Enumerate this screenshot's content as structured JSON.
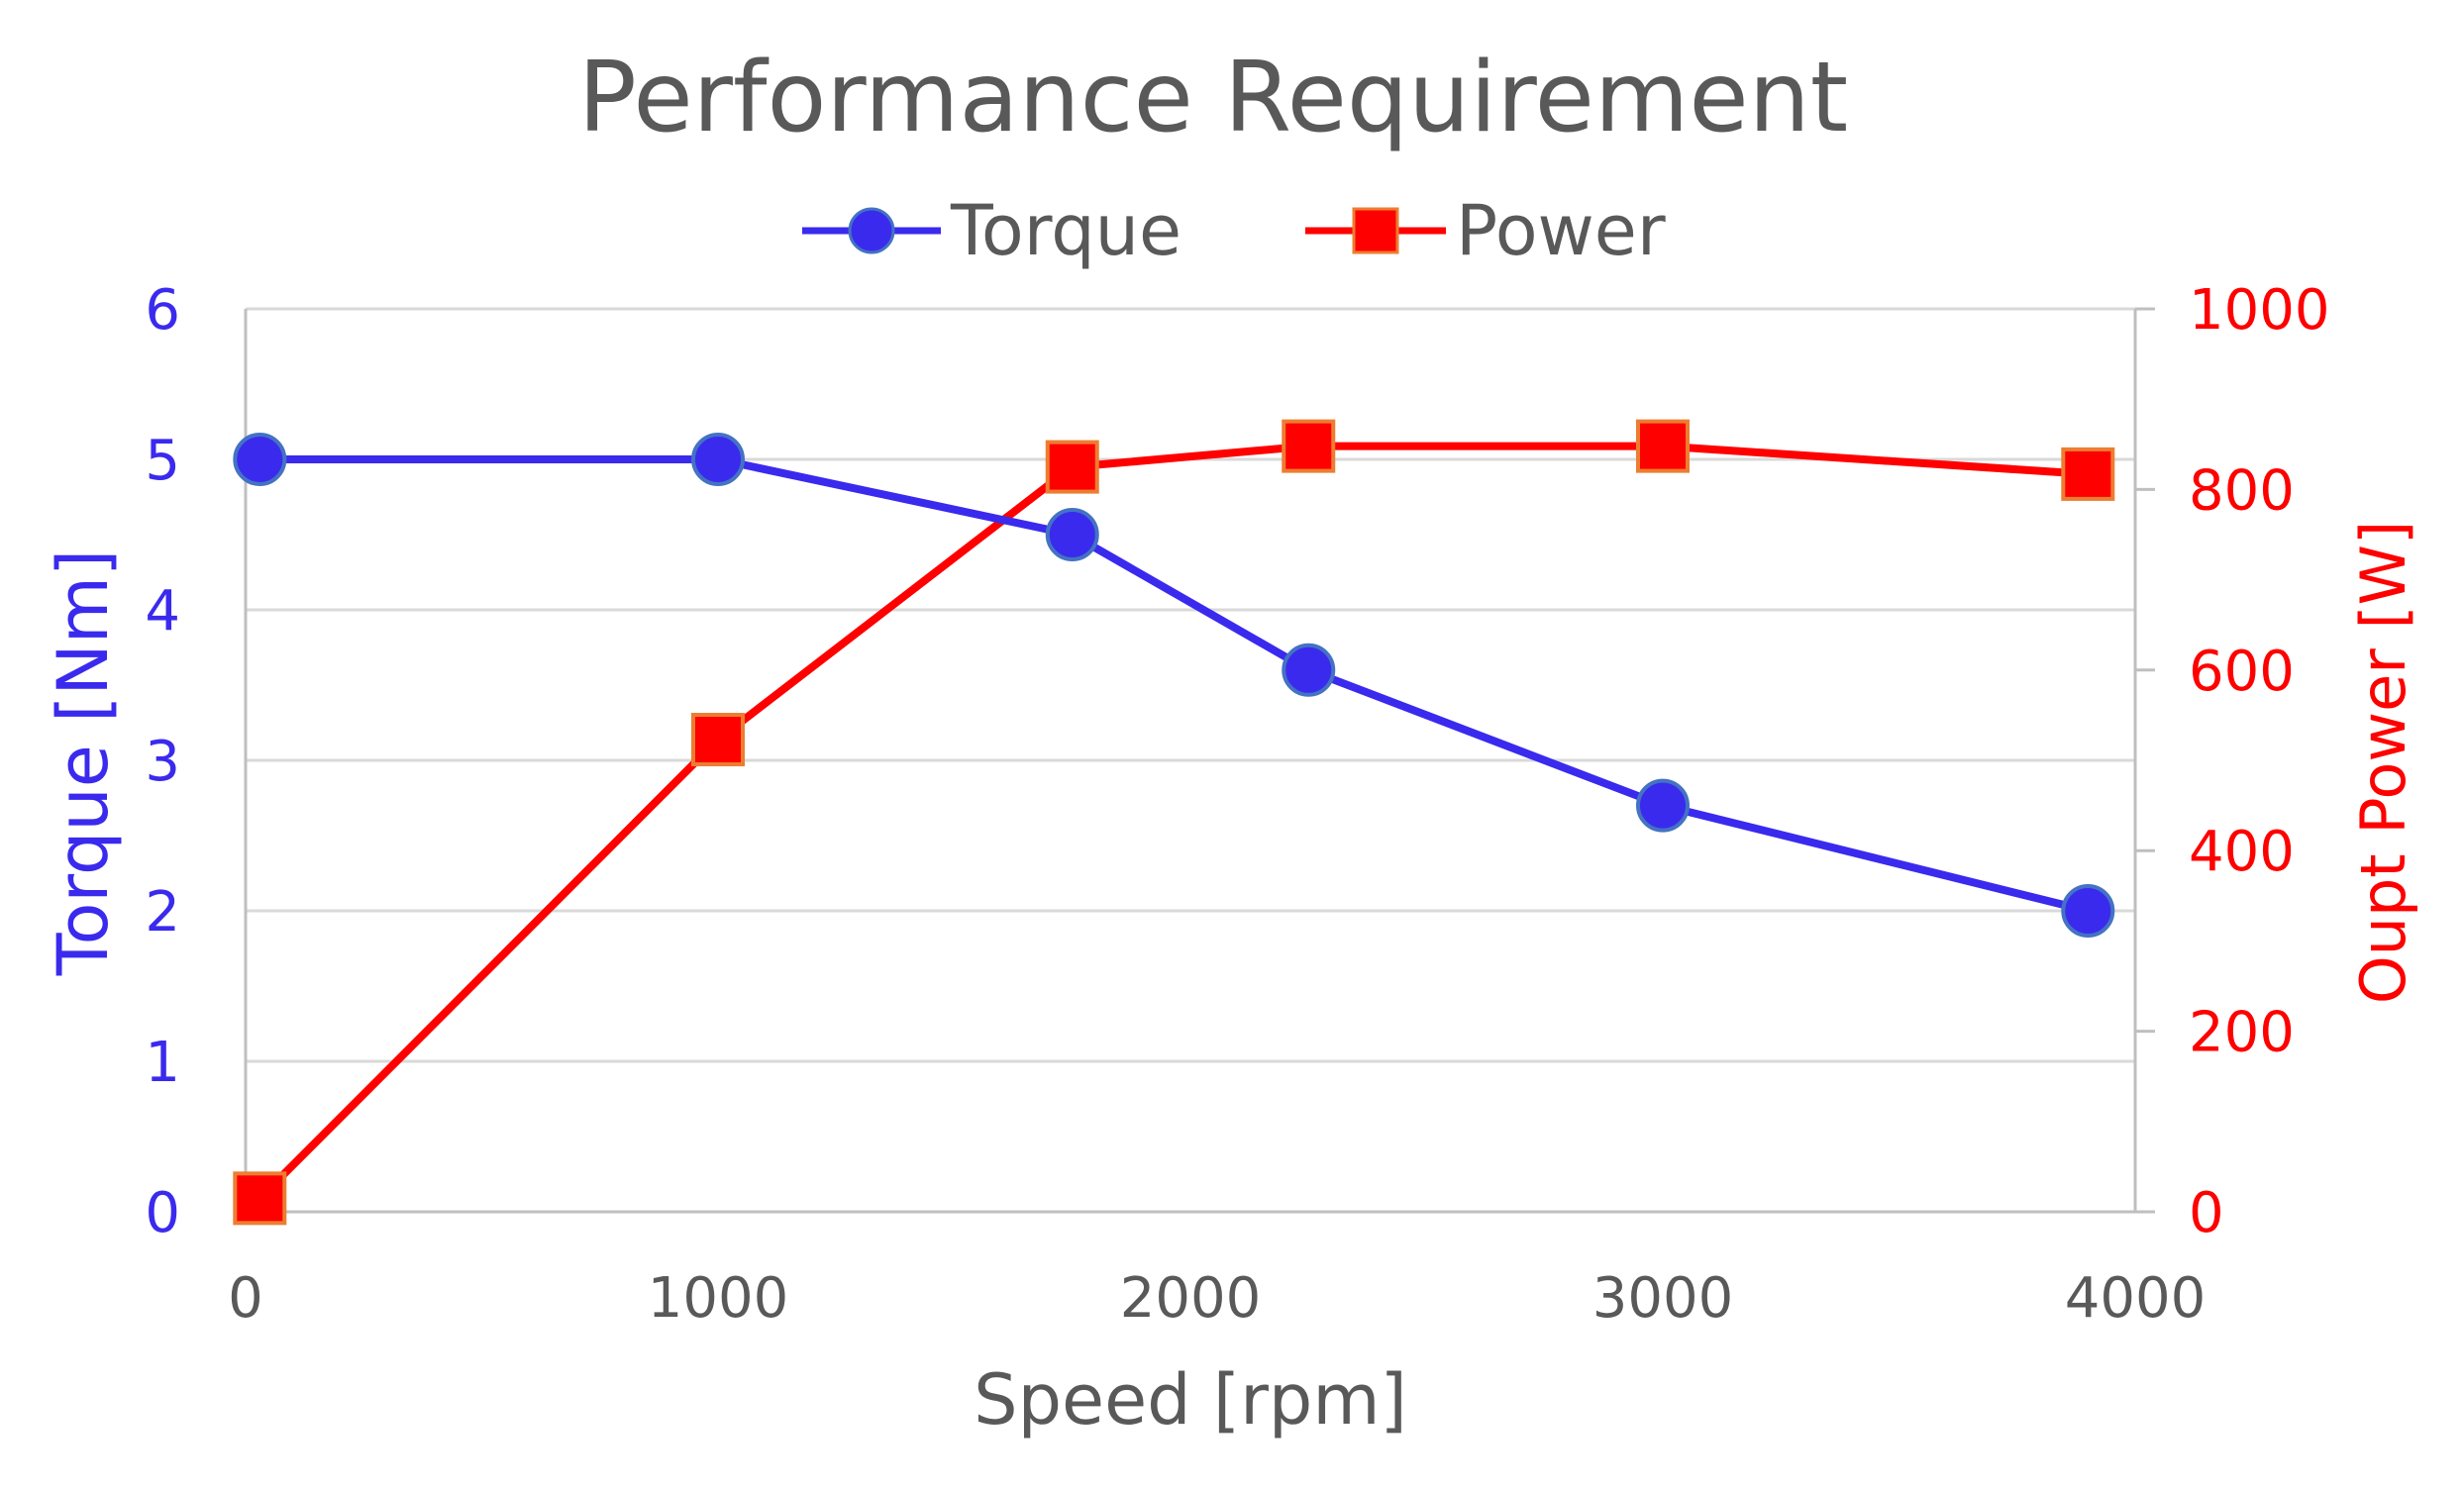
{
  "chart_data": {
    "type": "line",
    "title": "Performance Requirement",
    "xlabel": "Speed [rpm]",
    "ylabel_left": "Torque [Nm]",
    "ylabel_right": "Oupt Power [W]",
    "xlim": [
      0,
      4000
    ],
    "ylim_left": [
      0,
      6
    ],
    "ylim_right": [
      0,
      1000
    ],
    "x_ticks": [
      "0",
      "1000",
      "2000",
      "3000",
      "4000"
    ],
    "y_left_ticks": [
      "0",
      "1",
      "2",
      "3",
      "4",
      "5",
      "6"
    ],
    "y_right_ticks": [
      "0",
      "200",
      "400",
      "600",
      "800",
      "1000"
    ],
    "grid": true,
    "legend_position": "top-center",
    "series": [
      {
        "name": "Torque",
        "axis": "left",
        "color": "#3a2aee",
        "marker": "circle",
        "x": [
          30,
          1000,
          1750,
          2250,
          3000,
          3900
        ],
        "y": [
          5,
          5,
          4.5,
          3.6,
          2.7,
          2
        ]
      },
      {
        "name": "Power",
        "axis": "right",
        "color": "#ff0000",
        "marker": "square",
        "x": [
          30,
          1000,
          1750,
          2250,
          3000,
          3900
        ],
        "y": [
          15,
          523,
          825,
          848,
          848,
          817
        ]
      }
    ]
  }
}
